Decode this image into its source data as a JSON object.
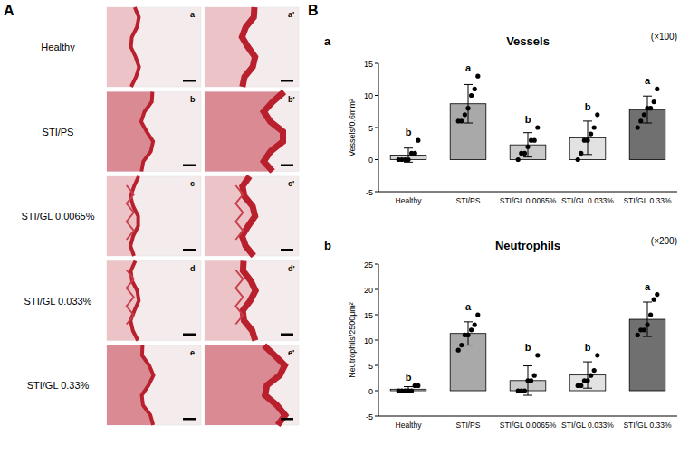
{
  "panel_A": {
    "label": "A",
    "rows": [
      {
        "name": "Healthy",
        "images": [
          "a",
          "a'"
        ]
      },
      {
        "name": "STI/PS",
        "images": [
          "b",
          "b'"
        ]
      },
      {
        "name": "STI/GL 0.0065%",
        "images": [
          "c",
          "c'"
        ]
      },
      {
        "name": "STI/GL 0.033%",
        "images": [
          "d",
          "d'"
        ]
      },
      {
        "name": "STI/GL 0.33%",
        "images": [
          "e",
          "e'"
        ]
      }
    ]
  },
  "panel_B": {
    "label": "B"
  },
  "chart_data": [
    {
      "type": "bar",
      "label": "a",
      "title": "Vessels",
      "magnification": "(×100)",
      "y_label": "Vessels/0.6mm²",
      "categories": [
        "Healthy",
        "STI/PS",
        "STI/GL 0.0065%",
        "STI/GL 0.033%",
        "STI/GL 0.33%"
      ],
      "values": [
        0.7,
        8.7,
        2.3,
        3.4,
        7.8
      ],
      "errors": [
        1.1,
        3.0,
        1.9,
        2.6,
        2.1
      ],
      "points": [
        [
          0,
          0,
          0,
          0,
          1,
          1,
          3
        ],
        [
          6,
          6,
          7,
          8,
          10,
          11,
          13
        ],
        [
          0,
          1,
          1,
          2,
          3,
          3,
          5
        ],
        [
          0,
          1,
          3,
          3,
          4,
          5,
          7
        ],
        [
          5,
          6,
          7,
          8,
          8,
          9,
          11
        ]
      ],
      "significance": [
        "b",
        "a",
        "b",
        "b",
        "a"
      ],
      "colors": [
        "#d4d4d4",
        "#a9a9a9",
        "#c9c9c9",
        "#e2e2e2",
        "#707070"
      ],
      "ylim": [
        -5,
        15
      ],
      "yticks": [
        -5,
        0,
        5,
        10,
        15
      ]
    },
    {
      "type": "bar",
      "label": "b",
      "title": "Neutrophils",
      "magnification": "(×200)",
      "y_label": "Neutrophils/2500μm²",
      "categories": [
        "Healthy",
        "STI/PS",
        "STI/GL 0.0065%",
        "STI/GL 0.033%",
        "STI/GL 0.33%"
      ],
      "values": [
        0.3,
        11.3,
        2.0,
        3.1,
        14.1
      ],
      "errors": [
        0.5,
        2.3,
        2.9,
        2.6,
        3.4
      ],
      "points": [
        [
          0,
          0,
          0,
          0,
          0,
          1,
          1
        ],
        [
          8,
          9,
          11,
          11,
          12,
          13,
          15
        ],
        [
          0,
          0,
          0,
          2,
          2,
          3,
          7
        ],
        [
          1,
          1,
          2,
          2,
          3,
          4,
          7
        ],
        [
          11,
          12,
          12,
          13,
          15,
          18,
          19
        ]
      ],
      "significance": [
        "b",
        "a",
        "b",
        "b",
        "a"
      ],
      "colors": [
        "#d4d4d4",
        "#a9a9a9",
        "#c9c9c9",
        "#e2e2e2",
        "#707070"
      ],
      "ylim": [
        -5,
        25
      ],
      "yticks": [
        -5,
        0,
        5,
        10,
        15,
        20,
        25
      ]
    }
  ]
}
